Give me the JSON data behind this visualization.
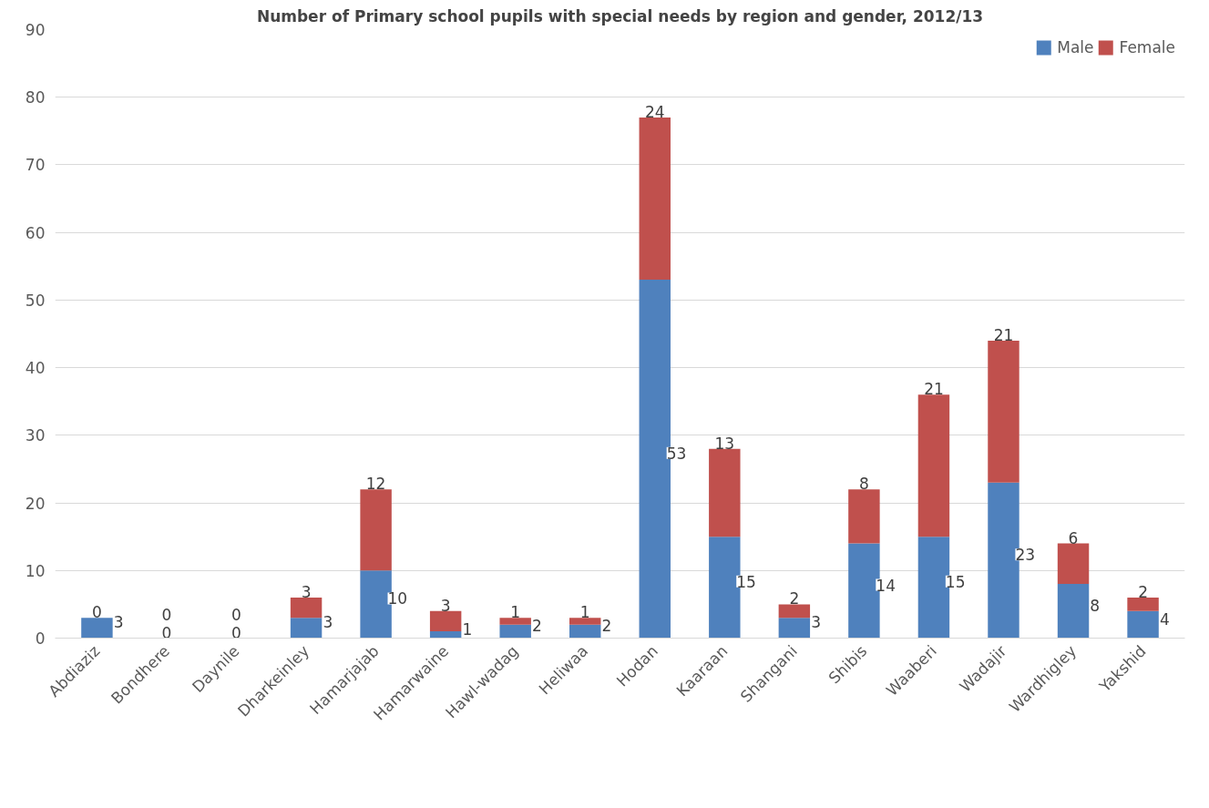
{
  "chart_data": {
    "type": "bar",
    "title": "Number of Primary school pupils with special needs by region and gender, 2012/13",
    "categories": [
      "Abdiaziz",
      "Bondhere",
      "Daynile",
      "Dharkeinley",
      "Hamarjajab",
      "Hamarwaine",
      "Hawl-wadag",
      "Heliwaa",
      "Hodan",
      "Kaaraan",
      "Shangani",
      "Shibis",
      "Waaberi",
      "Wadajir",
      "Wardhigley",
      "Yakshid"
    ],
    "series": [
      {
        "name": "Male",
        "color": "#4f81bd",
        "values": [
          3,
          0,
          0,
          3,
          10,
          1,
          2,
          2,
          53,
          15,
          3,
          14,
          15,
          23,
          8,
          4
        ]
      },
      {
        "name": "Female",
        "color": "#c0504d",
        "values": [
          0,
          0,
          0,
          3,
          12,
          3,
          1,
          1,
          24,
          13,
          2,
          8,
          21,
          21,
          6,
          2
        ]
      }
    ],
    "stacked": true,
    "ylim": [
      0,
      90
    ],
    "yticks": [
      0,
      10,
      20,
      30,
      40,
      50,
      60,
      70,
      80,
      90
    ],
    "grid": "y",
    "legend": "top right",
    "data_labels": true
  }
}
